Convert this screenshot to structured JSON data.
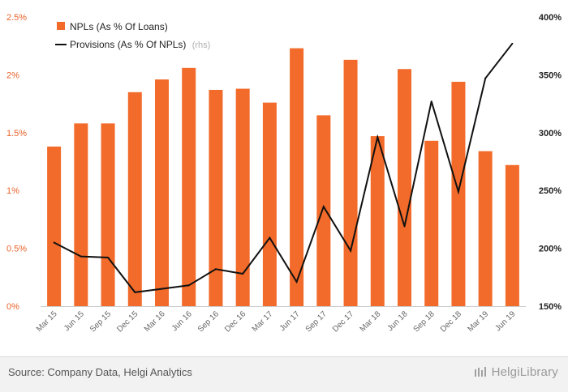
{
  "chart_data": {
    "type": "bar+line",
    "categories": [
      "Mar 15",
      "Jun 15",
      "Sep 15",
      "Dec 15",
      "Mar 16",
      "Jun 16",
      "Sep 16",
      "Dec 16",
      "Mar 17",
      "Jun 17",
      "Sep 17",
      "Dec 17",
      "Mar 18",
      "Jun 18",
      "Sep 18",
      "Dec 18",
      "Mar 19",
      "Jun 19"
    ],
    "series": [
      {
        "name": "NPLs (As % Of Loans)",
        "type": "bar",
        "axis": "left",
        "color": "#f26b2a",
        "values": [
          1.38,
          1.58,
          1.58,
          1.85,
          1.96,
          2.06,
          1.87,
          1.88,
          1.76,
          2.23,
          1.65,
          2.13,
          1.47,
          2.05,
          1.43,
          1.94,
          1.34,
          1.22
        ]
      },
      {
        "name": "Provisions (As % Of NPLs)",
        "type": "line",
        "axis": "right",
        "color": "#111111",
        "values": [
          205,
          193,
          192,
          162,
          165,
          168,
          182,
          178,
          209,
          171,
          236,
          198,
          296,
          219,
          327,
          249,
          347,
          377
        ]
      }
    ],
    "legend_note": "(rhs)",
    "y_left": {
      "min": 0,
      "max": 2.5,
      "ticks": [
        "0%",
        "0.5%",
        "1%",
        "1.5%",
        "2%",
        "2.5%"
      ],
      "tick_values": [
        0,
        0.5,
        1,
        1.5,
        2,
        2.5
      ]
    },
    "y_right": {
      "min": 150,
      "max": 400,
      "ticks": [
        "150%",
        "200%",
        "250%",
        "300%",
        "350%",
        "400%"
      ],
      "tick_values": [
        150,
        200,
        250,
        300,
        350,
        400
      ]
    },
    "grid": false,
    "legend_position": "top-left"
  },
  "footer": {
    "source": "Source: Company Data, Helgi Analytics",
    "brand": "HelgiLibrary"
  }
}
